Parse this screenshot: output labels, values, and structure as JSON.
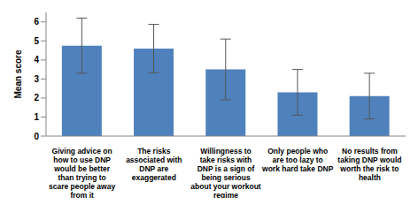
{
  "chart_data": {
    "type": "bar",
    "y_label": "Mean score",
    "categories": [
      "Giving advice on how to use DNP would be better than trying to scare people away from it",
      "The risks associated with DNP are exaggerated",
      "Willingness to take risks with DNP is a sign of being serious about your workout regime",
      "Only people who are too lazy to work hard take DNP",
      "No results from taking DNP would worth the risk to health"
    ],
    "values": [
      4.75,
      4.6,
      3.5,
      2.3,
      2.1
    ],
    "errors": [
      1.45,
      1.27,
      1.6,
      1.2,
      1.2
    ],
    "color": "#4f81bd",
    "ylim": [
      0,
      6.5
    ],
    "yticks": [
      0,
      1,
      2,
      3,
      4,
      5,
      6
    ],
    "grid": false
  }
}
